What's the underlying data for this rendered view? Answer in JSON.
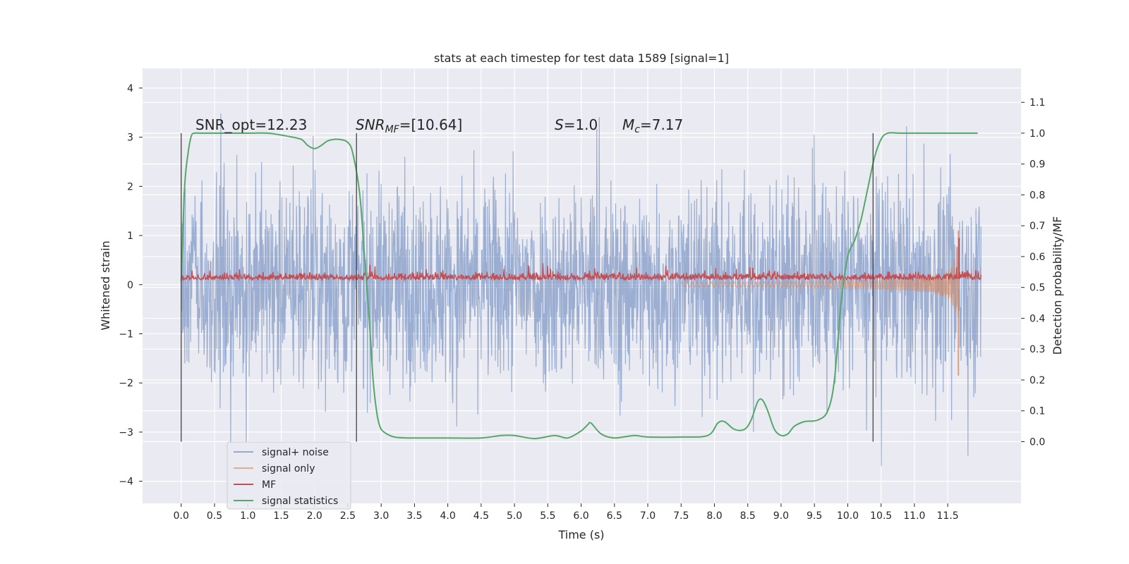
{
  "chart_data": {
    "type": "line",
    "title": "stats at each timestep for test data 1589 [signal=1]",
    "xlabel": "Time (s)",
    "ylabel": "Whitened strain",
    "y2label": "Detection probability/MF",
    "xlim": [
      -0.58,
      12.6
    ],
    "ylim": [
      -4.45,
      4.4
    ],
    "y2lim": [
      -0.2,
      1.21
    ],
    "x_ticks": [
      0.0,
      0.5,
      1.0,
      1.5,
      2.0,
      2.5,
      3.0,
      3.5,
      4.0,
      4.5,
      5.0,
      5.5,
      6.0,
      6.5,
      7.0,
      7.5,
      8.0,
      8.5,
      9.0,
      9.5,
      10.0,
      10.5,
      11.0,
      11.5
    ],
    "x_tick_labels": [
      "0.0",
      "0.5",
      "1.0",
      "1.5",
      "2.0",
      "2.5",
      "3.0",
      "3.5",
      "4.0",
      "4.5",
      "5.0",
      "5.5",
      "6.0",
      "6.5",
      "7.0",
      "7.5",
      "8.0",
      "8.5",
      "9.0",
      "9.5",
      "10.0",
      "10.5",
      "11.0",
      "11.5"
    ],
    "y_ticks": [
      -4,
      -3,
      -2,
      -1,
      0,
      1,
      2,
      3,
      4
    ],
    "y_tick_labels": [
      "−4",
      "−3",
      "−2",
      "−1",
      "0",
      "1",
      "2",
      "3",
      "4"
    ],
    "y2_ticks": [
      0.0,
      0.1,
      0.2,
      0.3,
      0.4,
      0.5,
      0.6,
      0.7,
      0.8,
      0.9,
      1.0,
      1.1
    ],
    "y2_tick_labels": [
      "0.0",
      "0.1",
      "0.2",
      "0.3",
      "0.4",
      "0.5",
      "0.6",
      "0.7",
      "0.8",
      "0.9",
      "1.0",
      "1.1"
    ],
    "grid": true,
    "legend_position": "lower-left",
    "annotations": {
      "snr_opt": "SNR_opt=12.23",
      "snr_mf_main": "SNR",
      "snr_mf_sub": "MF",
      "snr_mf_rest": "=[10.64]",
      "s_var": "S",
      "s_rest": "=1.0",
      "mc_var": "M",
      "mc_sub": "c",
      "mc_rest": "=7.17"
    },
    "vertical_markers": [
      0.0,
      2.63,
      10.38
    ],
    "vertical_marker_range_y2": [
      0.0,
      1.0
    ],
    "series": [
      {
        "name": "signal+ noise",
        "color": "#4c72b0",
        "axis": "left",
        "kind": "noise",
        "x_range": [
          0.0,
          12.0
        ],
        "typical_amplitude": 1.2,
        "peak_amplitude": 4.0
      },
      {
        "name": "signal only",
        "color": "#dd8452",
        "axis": "left",
        "kind": "chirp",
        "x_range": [
          7.5,
          11.66
        ],
        "peak_value": 1.1,
        "peak_time": 11.66,
        "min_value": -1.85
      },
      {
        "name": "MF",
        "color": "#c44e52",
        "axis": "left",
        "kind": "mf",
        "x_range": [
          0.0,
          12.0
        ],
        "baseline": 0.13,
        "spike_time": 11.67,
        "spike_value": 0.95
      },
      {
        "name": "signal statistics",
        "color": "#55a868",
        "axis": "right",
        "kind": "line",
        "x": [
          0.0,
          0.05,
          0.1,
          0.15,
          0.2,
          0.3,
          0.5,
          1.0,
          1.3,
          1.6,
          1.8,
          1.9,
          2.0,
          2.1,
          2.2,
          2.35,
          2.5,
          2.58,
          2.68,
          2.75,
          2.82,
          2.88,
          2.93,
          2.98,
          3.05,
          3.2,
          3.4,
          3.6,
          4.0,
          4.5,
          4.8,
          5.0,
          5.3,
          5.6,
          5.8,
          6.0,
          6.1,
          6.15,
          6.3,
          6.5,
          6.8,
          7.0,
          7.5,
          7.9,
          8.05,
          8.15,
          8.3,
          8.45,
          8.55,
          8.65,
          8.72,
          8.8,
          8.9,
          9.0,
          9.1,
          9.2,
          9.35,
          9.55,
          9.7,
          9.8,
          9.9,
          10.0,
          10.1,
          10.2,
          10.3,
          10.4,
          10.5,
          10.6,
          10.8,
          11.0,
          11.5,
          11.95
        ],
        "y": [
          0.52,
          0.82,
          0.93,
          0.99,
          1.0,
          1.0,
          1.0,
          1.0,
          1.0,
          0.99,
          0.98,
          0.96,
          0.95,
          0.96,
          0.975,
          0.98,
          0.97,
          0.93,
          0.8,
          0.6,
          0.4,
          0.2,
          0.1,
          0.05,
          0.03,
          0.015,
          0.012,
          0.012,
          0.012,
          0.012,
          0.02,
          0.02,
          0.01,
          0.02,
          0.012,
          0.035,
          0.055,
          0.06,
          0.025,
          0.012,
          0.02,
          0.015,
          0.015,
          0.02,
          0.06,
          0.065,
          0.04,
          0.04,
          0.07,
          0.13,
          0.135,
          0.1,
          0.04,
          0.02,
          0.025,
          0.05,
          0.065,
          0.07,
          0.1,
          0.2,
          0.45,
          0.6,
          0.65,
          0.72,
          0.82,
          0.92,
          0.98,
          1.0,
          1.0,
          1.0,
          1.0,
          1.0
        ]
      }
    ]
  }
}
